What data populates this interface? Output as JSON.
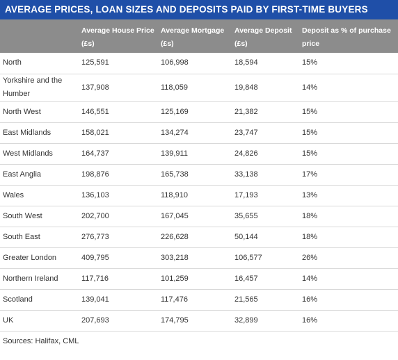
{
  "title": "AVERAGE PRICES, LOAN SIZES AND DEPOSITS PAID BY FIRST-TIME BUYERS",
  "headers": [
    "",
    "Average House Price (£s)",
    "Average Mortgage (£s)",
    "Average Deposit (£s)",
    "Deposit as % of purchase price"
  ],
  "rows": [
    [
      "North",
      "125,591",
      "106,998",
      "18,594",
      "15%"
    ],
    [
      "Yorkshire and the Humber",
      "137,908",
      "118,059",
      "19,848",
      "14%"
    ],
    [
      "North West",
      "146,551",
      "125,169",
      "21,382",
      "15%"
    ],
    [
      "East Midlands",
      "158,021",
      "134,274",
      "23,747",
      "15%"
    ],
    [
      "West Midlands",
      "164,737",
      "139,911",
      "24,826",
      "15%"
    ],
    [
      "East Anglia",
      "198,876",
      "165,738",
      "33,138",
      "17%"
    ],
    [
      "Wales",
      "136,103",
      "118,910",
      "17,193",
      "13%"
    ],
    [
      "South West",
      "202,700",
      "167,045",
      "35,655",
      "18%"
    ],
    [
      "South East",
      "276,773",
      "226,628",
      "50,144",
      "18%"
    ],
    [
      "Greater London",
      "409,795",
      "303,218",
      "106,577",
      "26%"
    ],
    [
      "Northern Ireland",
      "117,716",
      "101,259",
      "16,457",
      "14%"
    ],
    [
      "Scotland",
      "139,041",
      "117,476",
      "21,565",
      "16%"
    ],
    [
      "UK",
      "207,693",
      "174,795",
      "32,899",
      "16%"
    ]
  ],
  "source": "Sources: Halifax, CML",
  "colors": {
    "title_bg": "#1f4fa8",
    "header_bg": "#8c8c8c",
    "row_border": "#d9d9d9",
    "text": "#333333"
  }
}
